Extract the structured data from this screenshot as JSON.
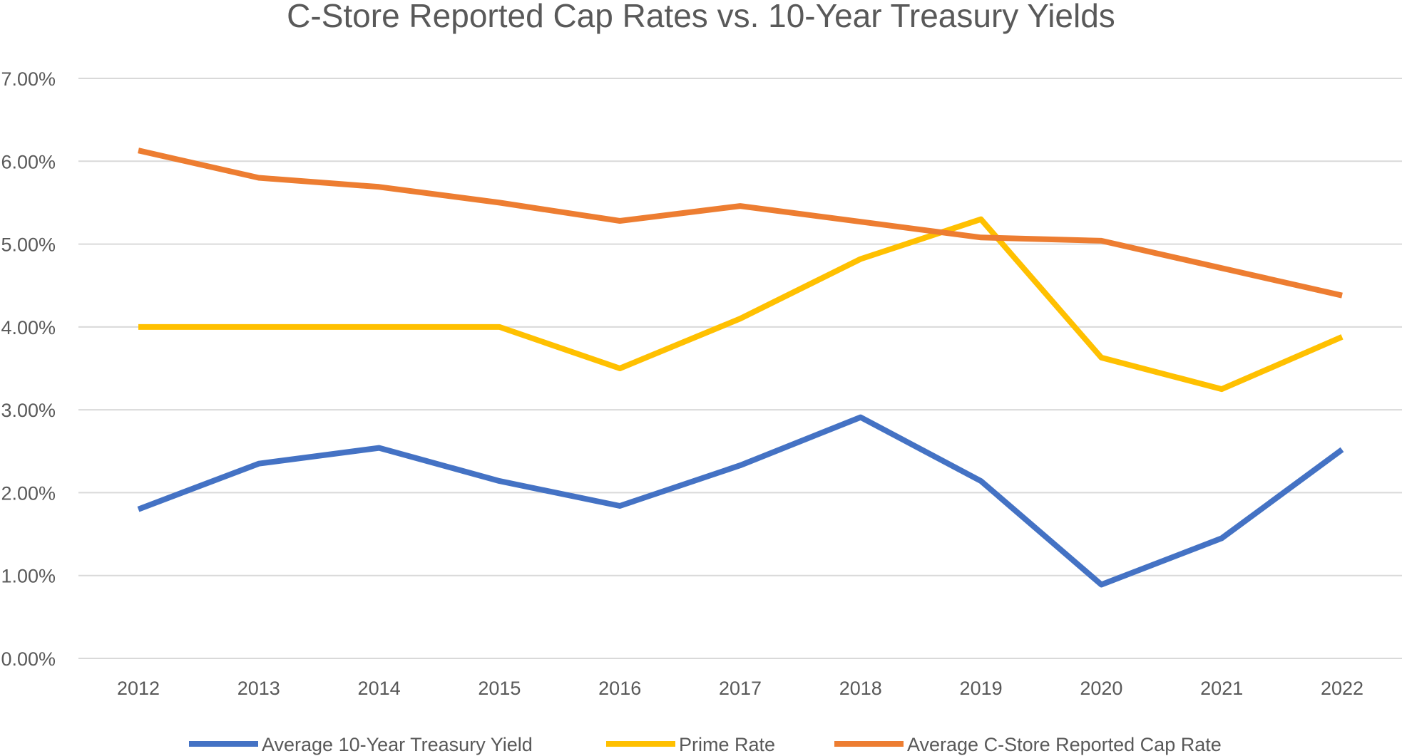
{
  "chart_data": {
    "type": "line",
    "title": "C-Store Reported Cap Rates vs. 10-Year Treasury Yields",
    "xlabel": "",
    "ylabel": "",
    "categories": [
      "2012",
      "2013",
      "2014",
      "2015",
      "2016",
      "2017",
      "2018",
      "2019",
      "2020",
      "2021",
      "2022"
    ],
    "ylim": [
      0,
      0.07
    ],
    "yticks": [
      0,
      0.01,
      0.02,
      0.03,
      0.04,
      0.05,
      0.06,
      0.07
    ],
    "ytick_labels": [
      "0.00%",
      "1.00%",
      "2.00%",
      "3.00%",
      "4.00%",
      "5.00%",
      "6.00%",
      "7.00%"
    ],
    "grid": true,
    "legend_position": "bottom",
    "series": [
      {
        "name": "Average 10-Year Treasury Yield",
        "color": "#4472c4",
        "values": [
          0.018,
          0.0235,
          0.0254,
          0.0214,
          0.0184,
          0.0233,
          0.0291,
          0.0214,
          0.0089,
          0.0145,
          0.0252
        ]
      },
      {
        "name": "Prime Rate",
        "color": "#ffc000",
        "values": [
          0.04,
          0.04,
          0.04,
          0.04,
          0.035,
          0.041,
          0.0482,
          0.053,
          0.0363,
          0.0325,
          0.0388
        ]
      },
      {
        "name": "Average C-Store Reported Cap Rate",
        "color": "#ed7d31",
        "values": [
          0.0613,
          0.058,
          0.0569,
          0.055,
          0.0528,
          0.0546,
          0.0527,
          0.0508,
          0.0504,
          0.0471,
          0.0438
        ]
      }
    ]
  }
}
